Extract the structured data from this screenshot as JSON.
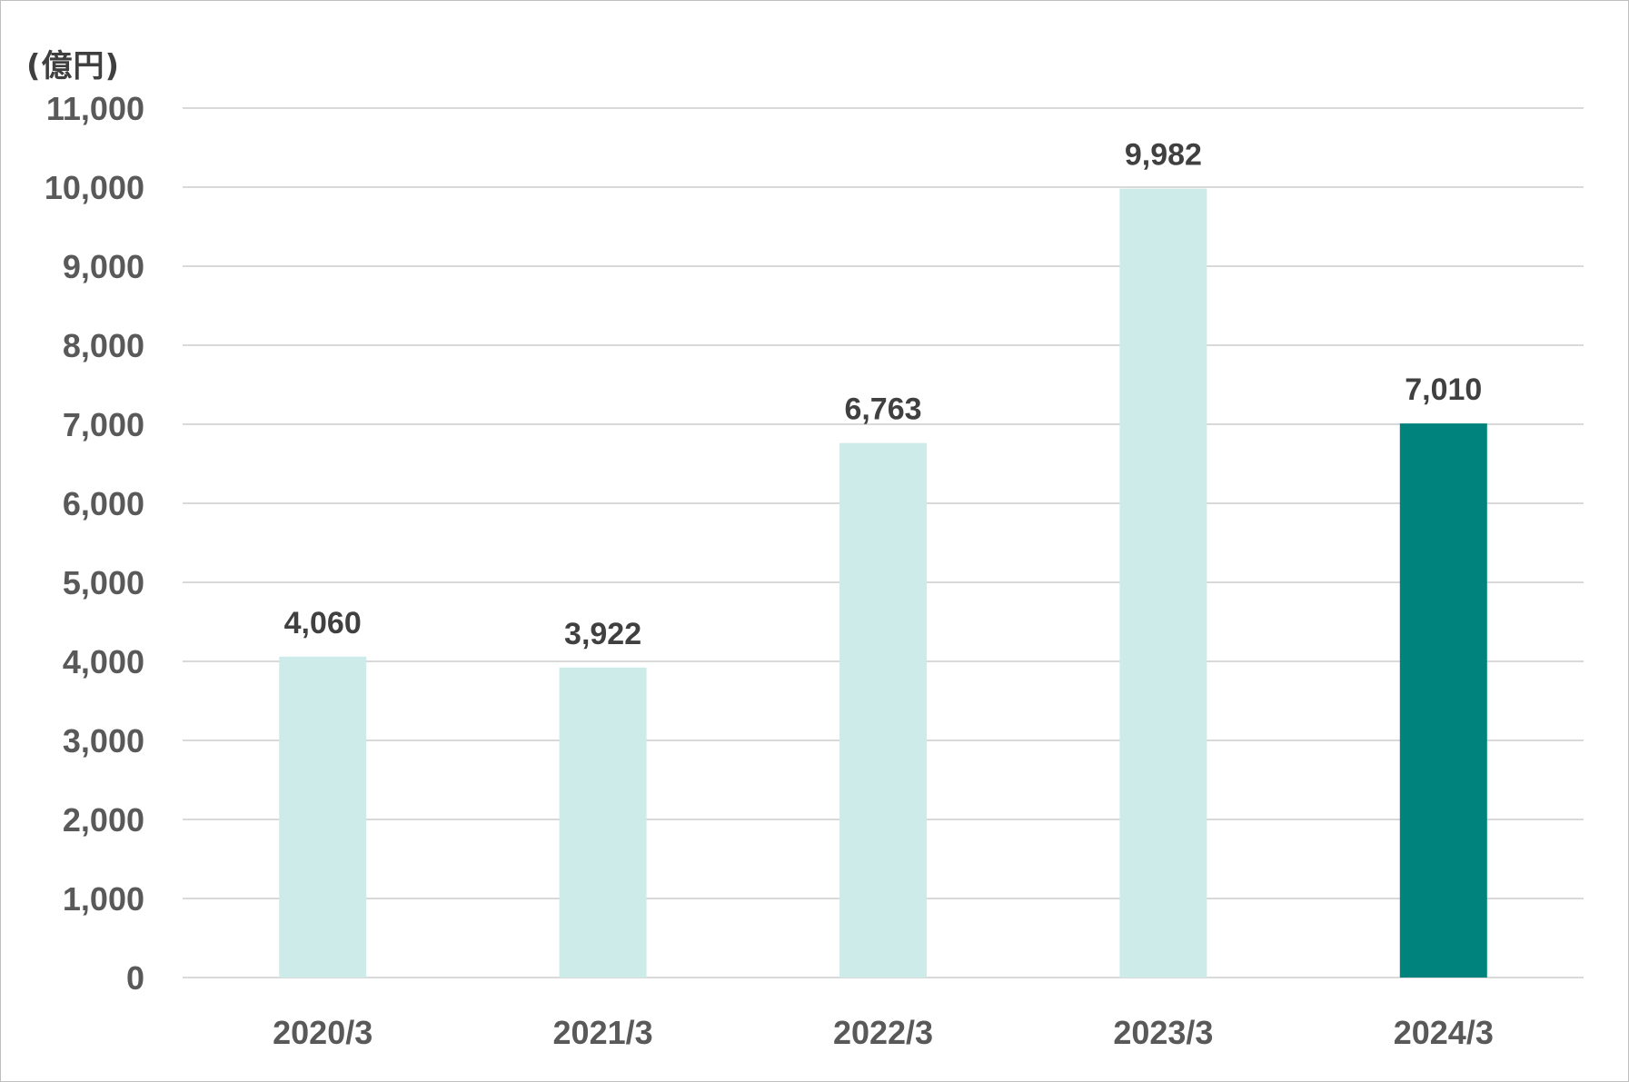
{
  "chart_data": {
    "type": "bar",
    "unit_label": "(億円)",
    "categories": [
      "2020/3",
      "2021/3",
      "2022/3",
      "2023/3",
      "2024/3"
    ],
    "values": [
      4060,
      3922,
      6763,
      9982,
      7010
    ],
    "data_labels": [
      "4,060",
      "3,922",
      "6,763",
      "9,982",
      "7,010"
    ],
    "ylim": [
      0,
      11000
    ],
    "yticks": [
      0,
      1000,
      2000,
      3000,
      4000,
      5000,
      6000,
      7000,
      8000,
      9000,
      10000,
      11000
    ],
    "ytick_labels": [
      "0",
      "1,000",
      "2,000",
      "3,000",
      "4,000",
      "5,000",
      "6,000",
      "7,000",
      "8,000",
      "9,000",
      "10,000",
      "11,000"
    ],
    "grid": true,
    "legend": "none",
    "colors": {
      "bar": "#cdebe9",
      "highlight_bar": "#00837c",
      "gridline": "#d9d9d9",
      "tick_text": "#595959",
      "data_label_text": "#404040"
    },
    "highlight_index": 4
  }
}
